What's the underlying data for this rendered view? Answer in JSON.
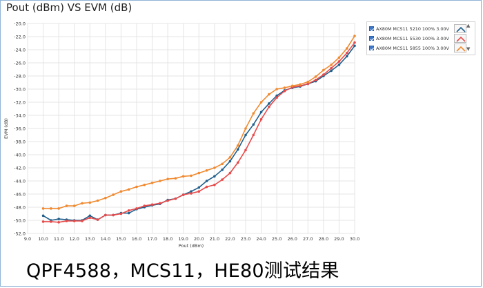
{
  "page": {
    "title": "Pout (dBm) VS EVM (dB)",
    "caption": "QPF4588，MCS11，HE80测试结果"
  },
  "legend": {
    "items": [
      {
        "label": "AX80M MCS11 5210 100% 3.00V",
        "color": "#1f5f8c"
      },
      {
        "label": "AX80M MCS11 5530 100% 3.00V",
        "color": "#e84a4a"
      },
      {
        "label": "AX80M MCS11 5855 100% 3.00V",
        "color": "#f08a30"
      }
    ],
    "scroll_up": "▲",
    "scroll_down": "▼"
  },
  "chart_data": {
    "type": "line",
    "xlabel": "Pout (dBm)",
    "ylabel": "EVM (dB)",
    "xlim": [
      9.0,
      30.0
    ],
    "ylim": [
      -52.0,
      -20.0
    ],
    "xticks": [
      "9.0",
      "10.0",
      "11.0",
      "12.0",
      "13.0",
      "14.0",
      "15.0",
      "16.0",
      "17.0",
      "18.0",
      "19.0",
      "20.0",
      "21.0",
      "22.0",
      "23.0",
      "24.0",
      "25.0",
      "26.0",
      "27.0",
      "28.0",
      "29.0",
      "30.0"
    ],
    "yticks": [
      "-20.0",
      "-22.0",
      "-24.0",
      "-26.0",
      "-28.0",
      "-30.0",
      "-32.0",
      "-34.0",
      "-36.0",
      "-38.0",
      "-40.0",
      "-42.0",
      "-44.0",
      "-46.0",
      "-48.0",
      "-50.0",
      "-52.0"
    ],
    "grid": true,
    "legend_position": "top-right",
    "series": [
      {
        "name": "AX80M MCS11 5210 100% 3.00V",
        "color": "#1f5f8c",
        "x": [
          10.0,
          10.5,
          11.0,
          11.5,
          12.0,
          12.5,
          13.0,
          13.5,
          14.0,
          14.5,
          15.0,
          15.5,
          16.0,
          16.5,
          17.0,
          17.5,
          18.0,
          18.5,
          19.0,
          19.5,
          20.0,
          20.5,
          21.0,
          21.5,
          22.0,
          22.5,
          23.0,
          23.5,
          24.0,
          24.5,
          25.0,
          25.5,
          26.0,
          26.5,
          27.0,
          27.5,
          28.0,
          28.5,
          29.0,
          29.5,
          30.0
        ],
        "y": [
          -49.3,
          -50.0,
          -49.8,
          -49.9,
          -50.0,
          -50.0,
          -49.3,
          -49.9,
          -49.2,
          -49.2,
          -48.9,
          -48.9,
          -48.3,
          -48.0,
          -47.7,
          -47.5,
          -46.9,
          -46.7,
          -46.1,
          -45.6,
          -45.0,
          -44.0,
          -43.3,
          -42.3,
          -41.0,
          -39.2,
          -37.0,
          -35.4,
          -33.5,
          -32.2,
          -31.0,
          -30.2,
          -29.8,
          -29.6,
          -29.2,
          -28.8,
          -28.0,
          -27.2,
          -26.3,
          -25.0,
          -23.4
        ]
      },
      {
        "name": "AX80M MCS11 5530 100% 3.00V",
        "color": "#e84a4a",
        "x": [
          10.0,
          10.5,
          11.0,
          11.5,
          12.0,
          12.5,
          13.0,
          13.5,
          14.0,
          14.5,
          15.0,
          15.5,
          16.0,
          16.5,
          17.0,
          17.5,
          18.0,
          18.5,
          19.0,
          19.5,
          20.0,
          20.5,
          21.0,
          21.5,
          22.0,
          22.5,
          23.0,
          23.5,
          24.0,
          24.5,
          25.0,
          25.5,
          26.0,
          26.5,
          27.0,
          27.5,
          28.0,
          28.5,
          29.0,
          29.5,
          30.0
        ],
        "y": [
          -50.2,
          -50.2,
          -50.3,
          -50.1,
          -50.1,
          -50.1,
          -49.6,
          -49.9,
          -49.2,
          -49.2,
          -49.0,
          -48.5,
          -48.2,
          -47.8,
          -47.6,
          -47.4,
          -47.0,
          -46.7,
          -46.1,
          -45.9,
          -45.6,
          -44.9,
          -44.6,
          -43.8,
          -42.8,
          -41.2,
          -39.3,
          -37.0,
          -34.6,
          -32.7,
          -31.3,
          -30.3,
          -29.7,
          -29.5,
          -29.2,
          -28.6,
          -27.8,
          -26.8,
          -25.8,
          -24.5,
          -22.9
        ]
      },
      {
        "name": "AX80M MCS11 5855 100% 3.00V",
        "color": "#f08a30",
        "x": [
          10.0,
          10.5,
          11.0,
          11.5,
          12.0,
          12.5,
          13.0,
          13.5,
          14.0,
          14.5,
          15.0,
          15.5,
          16.0,
          16.5,
          17.0,
          17.5,
          18.0,
          18.5,
          19.0,
          19.5,
          20.0,
          20.5,
          21.0,
          21.5,
          22.0,
          22.5,
          23.0,
          23.5,
          24.0,
          24.5,
          25.0,
          25.5,
          26.0,
          26.5,
          27.0,
          27.5,
          28.0,
          28.5,
          29.0,
          29.5,
          30.0
        ],
        "y": [
          -48.2,
          -48.2,
          -48.2,
          -47.8,
          -47.8,
          -47.4,
          -47.3,
          -47.0,
          -46.6,
          -46.1,
          -45.6,
          -45.3,
          -44.9,
          -44.6,
          -44.3,
          -44.0,
          -43.7,
          -43.6,
          -43.3,
          -43.2,
          -42.8,
          -42.4,
          -42.0,
          -41.4,
          -40.4,
          -38.6,
          -36.0,
          -33.7,
          -32.0,
          -30.8,
          -30.0,
          -29.8,
          -29.5,
          -29.3,
          -28.9,
          -28.1,
          -27.1,
          -26.3,
          -25.2,
          -23.8,
          -21.9
        ]
      }
    ]
  }
}
